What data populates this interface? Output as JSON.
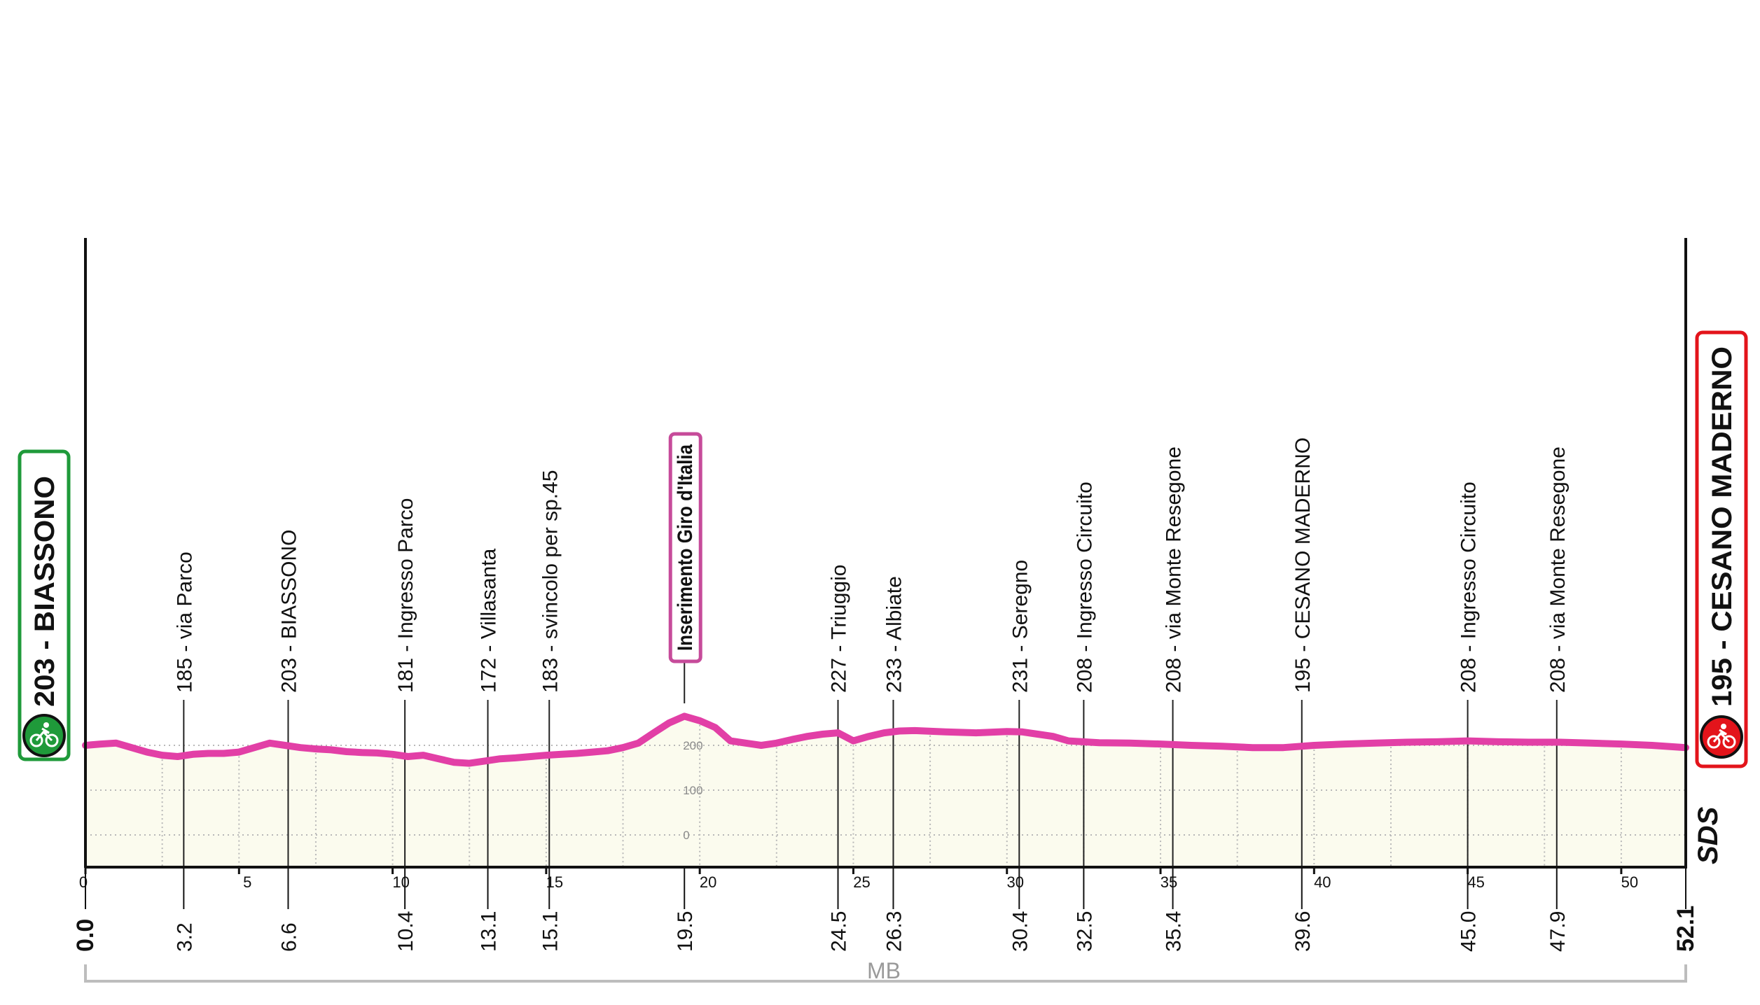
{
  "chart_data": {
    "type": "area",
    "title": "",
    "xlabel": "",
    "ylabel": "",
    "xlim": [
      0,
      52.1
    ],
    "ylim": [
      -70,
      1400
    ],
    "grid": true,
    "x_ticks": [
      "0",
      "5",
      "10",
      "15",
      "20",
      "25",
      "30",
      "35",
      "40",
      "45",
      "50"
    ],
    "y_ticks": [
      "0",
      "100",
      "200"
    ],
    "km_markers": [
      "0.0",
      "3.2",
      "6.6",
      "10.4",
      "13.1",
      "15.1",
      "19.5",
      "24.5",
      "26.3",
      "30.4",
      "32.5",
      "35.4",
      "39.6",
      "45.0",
      "47.9",
      "52.1"
    ],
    "waypoints": [
      {
        "km": 3.2,
        "label": "185 - via Parco"
      },
      {
        "km": 6.6,
        "label": "203 - BIASSONO"
      },
      {
        "km": 10.4,
        "label": "181 - Ingresso Parco"
      },
      {
        "km": 13.1,
        "label": "172 - Villasanta"
      },
      {
        "km": 15.1,
        "label": "183 - svincolo per sp.45"
      },
      {
        "km": 24.5,
        "label": "227 - Triuggio"
      },
      {
        "km": 26.3,
        "label": "233 - Albiate"
      },
      {
        "km": 30.4,
        "label": "231 - Seregno"
      },
      {
        "km": 32.5,
        "label": "208 - Ingresso Circuito"
      },
      {
        "km": 35.4,
        "label": "208 - via Monte Resegone"
      },
      {
        "km": 39.6,
        "label": "195 - CESANO MADERNO"
      },
      {
        "km": 45.0,
        "label": "208 - Ingresso Circuito"
      },
      {
        "km": 47.9,
        "label": "208 - via Monte Resegone"
      }
    ],
    "giro_marker": {
      "km": 19.5,
      "label": "Inserimento Giro d'Italia"
    },
    "start": {
      "label": "203 - BIASSONO",
      "color": "#1f9a3a"
    },
    "finish": {
      "label": "195 - CESANO MADERNO",
      "color": "#e3141b"
    },
    "profile_color": "#e23fa6",
    "fill_color": "#fbfbee",
    "brand": "SDS",
    "footer_label": "MB",
    "series": [
      {
        "x": [
          0,
          0.5,
          1,
          1.5,
          2,
          2.5,
          3,
          3.5,
          4,
          4.5,
          5,
          5.5,
          6,
          6.5,
          7,
          7.5,
          8,
          8.5,
          9,
          9.5,
          10,
          10.5,
          11,
          11.5,
          12,
          12.5,
          13,
          13.5,
          14,
          14.5,
          15,
          15.5,
          16,
          16.5,
          17,
          17.5,
          18,
          18.5,
          19,
          19.5,
          20,
          20.5,
          21,
          21.5,
          22,
          22.5,
          23,
          23.5,
          24,
          24.5,
          25,
          25.5,
          26,
          26.5,
          27,
          28,
          29,
          30,
          30.5,
          31,
          31.5,
          32,
          33,
          34,
          35,
          36,
          37,
          38,
          39,
          40,
          41,
          42,
          43,
          44,
          45,
          46,
          47,
          48,
          49,
          50,
          51,
          52.1
        ],
        "y": [
          200,
          203,
          205,
          195,
          185,
          178,
          175,
          180,
          182,
          182,
          185,
          195,
          205,
          200,
          195,
          192,
          190,
          186,
          184,
          183,
          180,
          175,
          178,
          170,
          162,
          160,
          165,
          170,
          172,
          175,
          178,
          180,
          182,
          185,
          188,
          195,
          205,
          228,
          250,
          265,
          255,
          240,
          210,
          205,
          200,
          205,
          213,
          220,
          225,
          228,
          210,
          220,
          228,
          232,
          233,
          230,
          228,
          231,
          230,
          225,
          220,
          210,
          206,
          205,
          203,
          200,
          198,
          195,
          195,
          200,
          203,
          205,
          207,
          208,
          210,
          208,
          207,
          207,
          205,
          203,
          200,
          195
        ]
      }
    ]
  }
}
